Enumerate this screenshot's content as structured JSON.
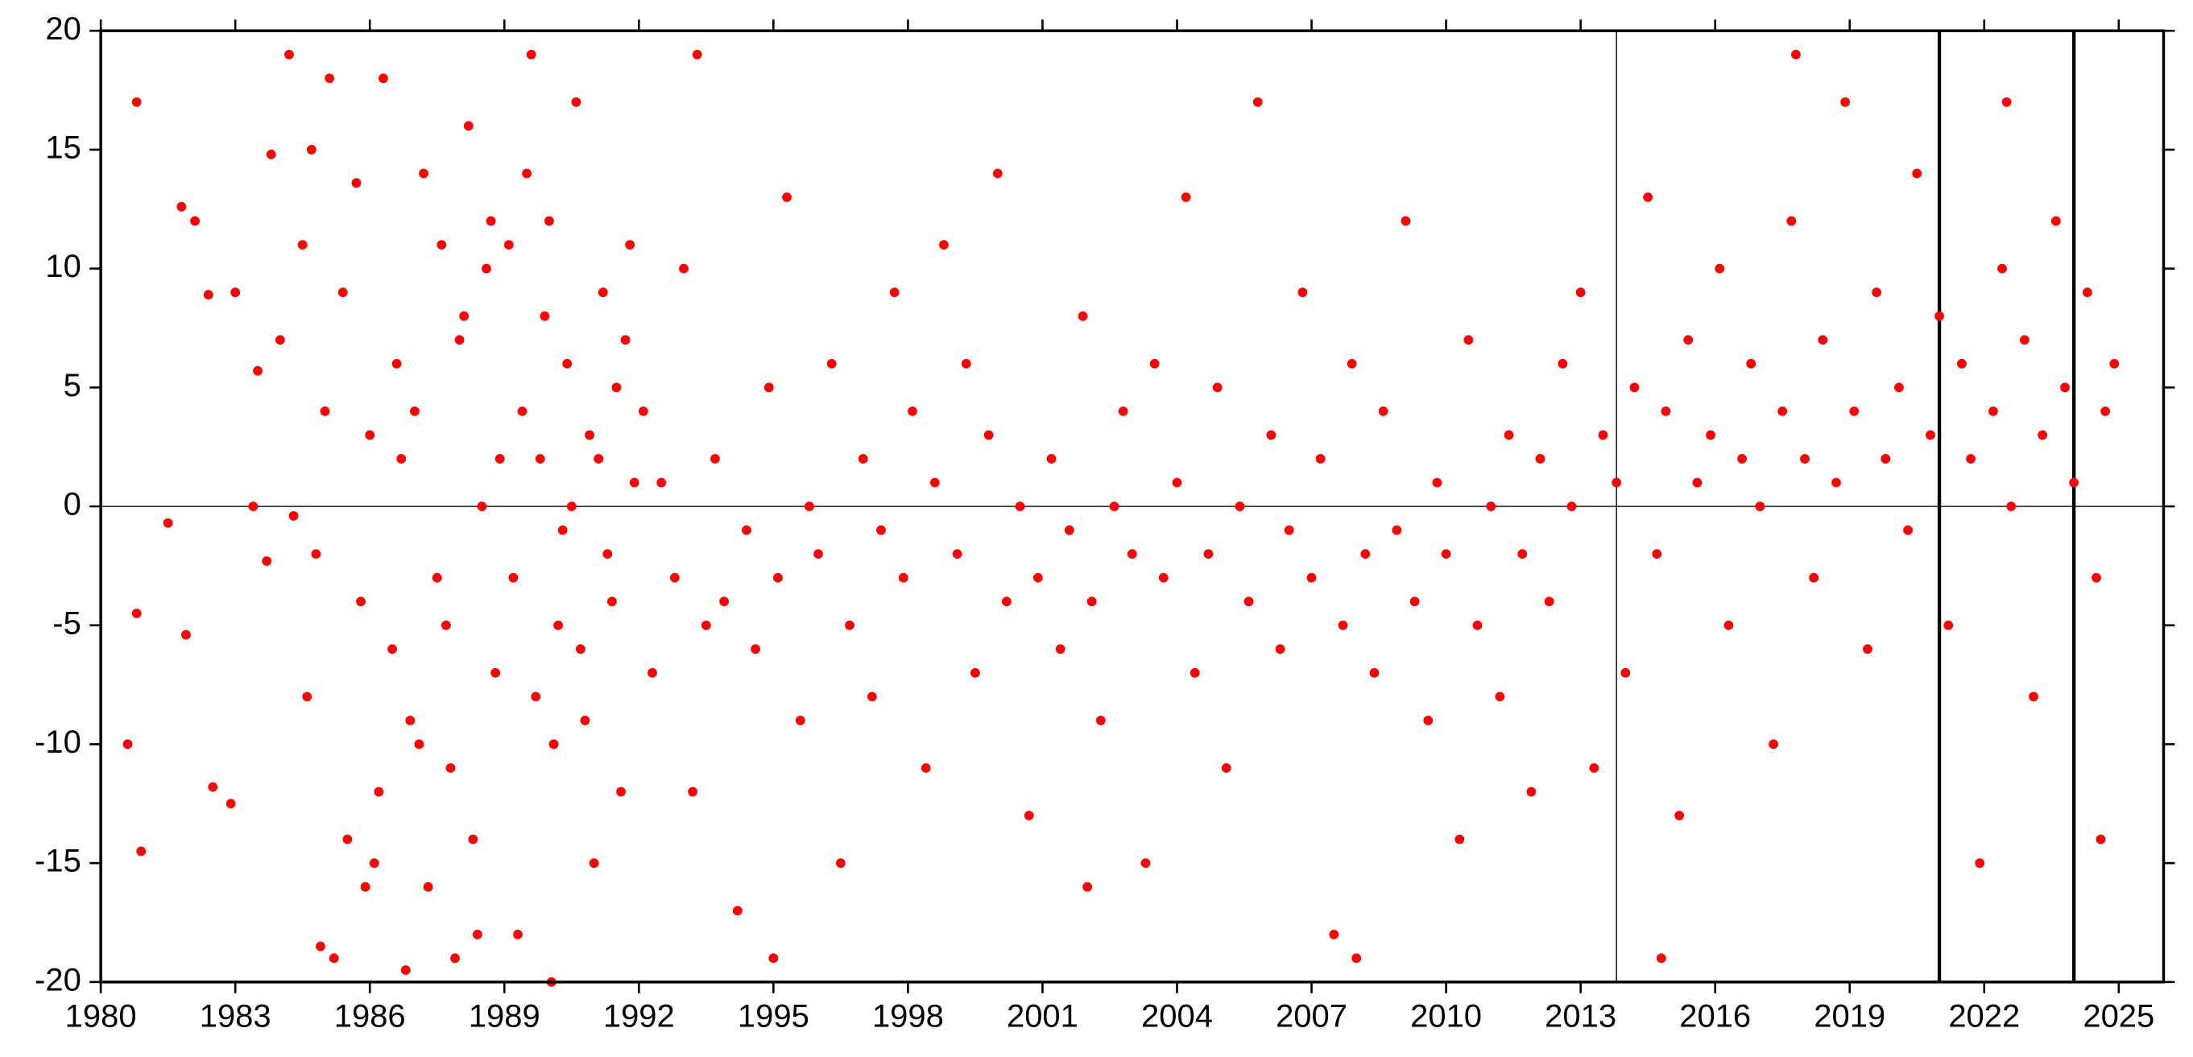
{
  "chart_data": {
    "type": "scatter",
    "color": "#ff0000",
    "xlim": [
      1980,
      2026
    ],
    "ylim": [
      -20,
      20
    ],
    "xticks": [
      1980,
      1983,
      1986,
      1989,
      1992,
      1995,
      1998,
      2001,
      2004,
      2007,
      2010,
      2013,
      2016,
      2019,
      2022,
      2025
    ],
    "yticks": [
      -20,
      -15,
      -10,
      -5,
      0,
      5,
      10,
      15,
      20
    ],
    "hline": 0,
    "vlines": [
      2013.8,
      2021,
      2024
    ],
    "x": [
      1980.6,
      1980.8,
      1980.8,
      1980.9,
      1981.5,
      1981.8,
      1981.9,
      1982.1,
      1982.4,
      1982.5,
      1982.9,
      1983.0,
      1983.4,
      1983.5,
      1983.7,
      1983.8,
      1984.0,
      1984.2,
      1984.3,
      1984.5,
      1984.6,
      1984.7,
      1984.9,
      1985.0,
      1985.2,
      1985.4,
      1985.5,
      1985.7,
      1985.9,
      1986.0,
      1986.2,
      1986.3,
      1986.5,
      1986.6,
      1986.8,
      1986.9,
      1987.0,
      1987.2,
      1987.3,
      1987.5,
      1987.6,
      1987.8,
      1987.9,
      1988.0,
      1988.2,
      1988.3,
      1988.5,
      1988.6,
      1988.8,
      1988.9,
      1984.8,
      1985.1,
      1985.8,
      1986.1,
      1986.7,
      1987.1,
      1987.7,
      1988.1,
      1988.4,
      1988.7,
      1989.1,
      1989.2,
      1989.4,
      1989.5,
      1989.7,
      1989.8,
      1990.0,
      1990.1,
      1990.3,
      1990.4,
      1990.6,
      1990.7,
      1990.9,
      1991.0,
      1991.2,
      1991.3,
      1991.5,
      1991.6,
      1991.8,
      1991.9,
      1989.3,
      1989.9,
      1990.2,
      1990.5,
      1990.8,
      1991.1,
      1991.4,
      1991.7,
      1990.05,
      1989.6,
      1992.1,
      1992.3,
      1992.5,
      1992.8,
      1993.0,
      1993.2,
      1993.5,
      1993.7,
      1993.9,
      1994.2,
      1994.4,
      1994.6,
      1994.9,
      1995.1,
      1995.3,
      1995.6,
      1995.8,
      1996.0,
      1996.3,
      1996.5,
      1996.7,
      1997.0,
      1997.2,
      1997.4,
      1997.7,
      1997.9,
      1998.1,
      1998.4,
      1998.6,
      1998.8,
      1999.1,
      1999.3,
      1999.5,
      1999.8,
      2000.0,
      2000.2,
      2000.5,
      2000.7,
      2000.9,
      2001.2,
      2001.4,
      2001.6,
      2001.9,
      2002.1,
      2002.3,
      2002.6,
      2002.8,
      2003.0,
      2003.3,
      2003.5,
      2003.7,
      2004.0,
      2004.2,
      2004.4,
      2004.7,
      2004.9,
      2005.1,
      2005.4,
      2005.6,
      2005.8,
      2006.1,
      2006.3,
      2006.5,
      2006.8,
      2007.0,
      2007.2,
      2007.5,
      2007.7,
      2007.9,
      2008.2,
      2008.4,
      2008.6,
      2008.9,
      2009.1,
      2009.3,
      2009.6,
      2009.8,
      2010.0,
      2010.3,
      2010.5,
      2010.7,
      2011.0,
      2011.2,
      2011.4,
      2011.7,
      2011.9,
      1993.3,
      1995.0,
      2002.0,
      2008.0,
      2012.1,
      2012.3,
      2012.6,
      2012.8,
      2013.0,
      2013.3,
      2013.5,
      2013.8,
      2014.0,
      2014.2,
      2014.5,
      2014.7,
      2014.9,
      2015.2,
      2015.4,
      2015.6,
      2015.9,
      2016.1,
      2016.3,
      2016.6,
      2016.8,
      2017.0,
      2017.3,
      2017.5,
      2017.7,
      2018.0,
      2018.2,
      2018.4,
      2018.7,
      2018.9,
      2019.1,
      2019.4,
      2019.6,
      2019.8,
      2020.1,
      2020.3,
      2020.5,
      2020.8,
      2021.0,
      2021.2,
      2021.5,
      2021.7,
      2021.9,
      2022.2,
      2022.4,
      2022.6,
      2022.9,
      2023.1,
      2023.3,
      2023.6,
      2023.8,
      2024.0,
      2024.3,
      2024.5,
      2024.7,
      2024.9,
      2014.8,
      2017.8,
      2022.5,
      2024.6
    ],
    "values": [
      -10,
      17,
      -4.5,
      -14.5,
      -0.7,
      12.6,
      -5.4,
      12,
      8.9,
      -11.8,
      -12.5,
      9,
      0,
      5.7,
      -2.3,
      14.8,
      7,
      19,
      -0.4,
      11,
      -8,
      15,
      -18.5,
      4,
      -19,
      9,
      -14,
      13.6,
      -16,
      3,
      -12,
      18,
      -6,
      6,
      -19.5,
      -9,
      4,
      14,
      -16,
      -3,
      11,
      -11,
      -19,
      7,
      16,
      -14,
      0,
      10,
      -7,
      2,
      -2,
      18,
      -4,
      -15,
      2,
      -10,
      -5,
      8,
      -18,
      12,
      11,
      -3,
      4,
      14,
      -8,
      2,
      12,
      -10,
      -1,
      6,
      17,
      -6,
      3,
      -15,
      9,
      -2,
      5,
      -12,
      11,
      1,
      -18,
      8,
      -5,
      0,
      -9,
      2,
      -4,
      7,
      -20,
      19,
      4,
      -7,
      1,
      -3,
      10,
      -12,
      -5,
      2,
      -4,
      -17,
      -1,
      -6,
      5,
      -3,
      13,
      -9,
      0,
      -2,
      6,
      -15,
      -5,
      2,
      -8,
      -1,
      9,
      -3,
      4,
      -11,
      1,
      11,
      -2,
      6,
      -7,
      3,
      14,
      -4,
      0,
      -13,
      -3,
      2,
      -6,
      -1,
      8,
      -4,
      -9,
      0,
      4,
      -2,
      -15,
      6,
      -3,
      1,
      13,
      -7,
      -2,
      5,
      -11,
      0,
      -4,
      17,
      3,
      -6,
      -1,
      9,
      -3,
      2,
      -18,
      -5,
      6,
      -2,
      -7,
      4,
      -1,
      12,
      -4,
      -9,
      1,
      -2,
      -14,
      7,
      -5,
      0,
      -8,
      3,
      -2,
      -12,
      19,
      -19,
      -16,
      -19,
      2,
      -4,
      6,
      0,
      9,
      -11,
      3,
      1,
      -7,
      5,
      13,
      -2,
      4,
      -13,
      7,
      1,
      3,
      10,
      -5,
      2,
      6,
      0,
      -10,
      4,
      12,
      2,
      -3,
      7,
      1,
      17,
      4,
      -6,
      9,
      2,
      5,
      -1,
      14,
      3,
      8,
      -5,
      6,
      2,
      -15,
      4,
      10,
      0,
      7,
      -8,
      3,
      12,
      5,
      1,
      9,
      -3,
      4,
      6,
      -19,
      19,
      17,
      -14
    ]
  }
}
